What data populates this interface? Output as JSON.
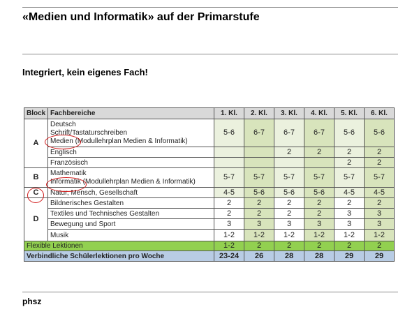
{
  "slide": {
    "title": "«Medien und Informatik» auf der Primarstufe",
    "subtitle": "Integriert, kein eigenes Fach!",
    "footer": "phsz"
  },
  "table": {
    "headers": [
      "Block",
      "Fachbereiche",
      "1. Kl.",
      "2. Kl.",
      "3. Kl.",
      "4. Kl.",
      "5. Kl.",
      "6. Kl."
    ],
    "blocks": {
      "A": "A",
      "B": "B",
      "C": "C",
      "D": "D"
    },
    "rows": {
      "a1": {
        "lines": [
          "Deutsch",
          "Schrift/Tastaturschreiben",
          "Medien (Modullehrplan Medien & Informatik)"
        ],
        "values": [
          "5-6",
          "6-7",
          "6-7",
          "6-7",
          "5-6",
          "5-6"
        ]
      },
      "a2": {
        "lines": [
          "Englisch",
          "Französisch"
        ],
        "values_top": [
          "",
          "",
          "2",
          "2",
          "2",
          "2"
        ],
        "values_bottom": [
          "",
          "",
          "",
          "",
          "2",
          "2"
        ]
      },
      "b": {
        "lines": [
          "Mathematik",
          "Informatik (Modullehrplan Medien & Informatik)"
        ],
        "values": [
          "5-7",
          "5-7",
          "5-7",
          "5-7",
          "5-7",
          "5-7"
        ]
      },
      "c": {
        "label": "Natur, Mensch, Gesellschaft",
        "values": [
          "4-5",
          "5-6",
          "5-6",
          "5-6",
          "4-5",
          "4-5"
        ]
      },
      "d1": {
        "label": "Bildnerisches Gestalten",
        "values": [
          "2",
          "2",
          "2",
          "2",
          "2",
          "2"
        ]
      },
      "d2": {
        "label": "Textiles und Technisches Gestalten",
        "values": [
          "2",
          "2",
          "2",
          "2",
          "3",
          "3"
        ]
      },
      "d3": {
        "label": "Bewegung und Sport",
        "values": [
          "3",
          "3",
          "3",
          "3",
          "3",
          "3"
        ]
      },
      "d4": {
        "label": "Musik",
        "values": [
          "1-2",
          "1-2",
          "1-2",
          "1-2",
          "1-2",
          "1-2"
        ]
      }
    },
    "flexible": {
      "label": "Flexible Lektionen",
      "values": [
        "1-2",
        "2",
        "2",
        "2",
        "2",
        "2"
      ]
    },
    "total": {
      "label": "Verbindliche Schülerlektionen pro Woche",
      "values": [
        "23-24",
        "26",
        "28",
        "28",
        "29",
        "29"
      ]
    },
    "highlight_color": "#d11a1a"
  }
}
